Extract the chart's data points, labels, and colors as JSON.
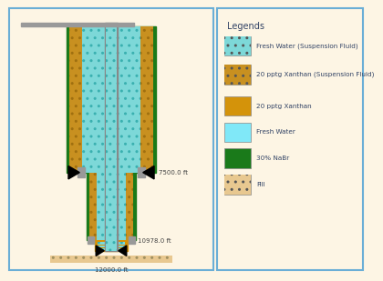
{
  "bg_color": "#fdf5e4",
  "border_color": "#6aaed6",
  "colors": {
    "fresh_water_suspension": "#7dd8d8",
    "xanthan_suspension": "#c89020",
    "xanthan": "#d4930a",
    "fresh_water": "#80e8f8",
    "nabr": "#1a7a1a",
    "fill": "#e8c890"
  },
  "legend_items": [
    {
      "label": "Fresh Water (Suspension Fluid)",
      "color_key": "fresh_water_suspension",
      "hatch": ".."
    },
    {
      "label": "20 pptg Xanthan (Suspension Fluid)",
      "color_key": "xanthan_suspension",
      "hatch": ".."
    },
    {
      "label": "20 pptg Xanthan",
      "color_key": "xanthan",
      "hatch": ""
    },
    {
      "label": "Fresh Water",
      "color_key": "fresh_water",
      "hatch": ""
    },
    {
      "label": "30% NaBr",
      "color_key": "nabr",
      "hatch": ""
    },
    {
      "label": "Fill",
      "color_key": "fill",
      "hatch": ".."
    }
  ],
  "title": "Legends"
}
